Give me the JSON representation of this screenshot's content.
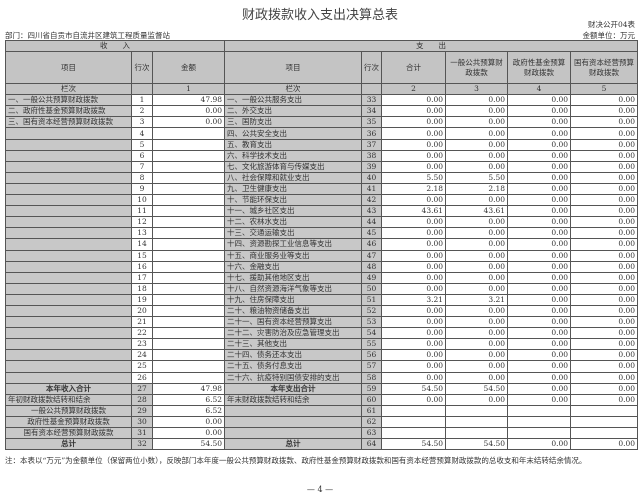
{
  "title": "财政拨款收入支出决算总表",
  "form_no": "财决公开04表",
  "department": "部门：四川省自贡市自流井区建筑工程质量监督站",
  "unit": "金额单位：万元",
  "headers": {
    "income": "收　　入",
    "expense": "支　　出",
    "item": "项目",
    "line_no": "行次",
    "amount": "金额",
    "total": "合计",
    "general_budget": "一般公共预算财政拨款",
    "gov_fund": "政府性基金预算财政拨款",
    "state_capital": "国有资本经营预算财政拨款",
    "column_label": "栏次",
    "col_nums": [
      "1",
      "2",
      "3",
      "4",
      "5"
    ]
  },
  "income_rows": [
    {
      "item": "一、一般公共预算财政拨款",
      "no": "1",
      "amount": "47.98"
    },
    {
      "item": "二、政府性基金预算财政拨款",
      "no": "2",
      "amount": "0.00"
    },
    {
      "item": "三、国有资本经营预算财政拨款",
      "no": "3",
      "amount": "0.00"
    },
    {
      "item": "",
      "no": "4",
      "amount": ""
    },
    {
      "item": "",
      "no": "5",
      "amount": ""
    },
    {
      "item": "",
      "no": "6",
      "amount": ""
    },
    {
      "item": "",
      "no": "7",
      "amount": ""
    },
    {
      "item": "",
      "no": "8",
      "amount": ""
    },
    {
      "item": "",
      "no": "9",
      "amount": ""
    },
    {
      "item": "",
      "no": "10",
      "amount": ""
    },
    {
      "item": "",
      "no": "11",
      "amount": ""
    },
    {
      "item": "",
      "no": "12",
      "amount": ""
    },
    {
      "item": "",
      "no": "13",
      "amount": ""
    },
    {
      "item": "",
      "no": "14",
      "amount": ""
    },
    {
      "item": "",
      "no": "15",
      "amount": ""
    },
    {
      "item": "",
      "no": "16",
      "amount": ""
    },
    {
      "item": "",
      "no": "17",
      "amount": ""
    },
    {
      "item": "",
      "no": "18",
      "amount": ""
    },
    {
      "item": "",
      "no": "19",
      "amount": ""
    },
    {
      "item": "",
      "no": "20",
      "amount": ""
    },
    {
      "item": "",
      "no": "21",
      "amount": ""
    },
    {
      "item": "",
      "no": "22",
      "amount": ""
    },
    {
      "item": "",
      "no": "23",
      "amount": ""
    },
    {
      "item": "",
      "no": "24",
      "amount": ""
    },
    {
      "item": "",
      "no": "25",
      "amount": ""
    },
    {
      "item": "",
      "no": "26",
      "amount": ""
    },
    {
      "item": "本年收入合计",
      "no": "27",
      "amount": "47.98"
    },
    {
      "item": "年初财政拨款结转和结余",
      "no": "28",
      "amount": "6.52"
    },
    {
      "item": "一般公共预算财政拨款",
      "no": "29",
      "amount": "6.52"
    },
    {
      "item": "政府性基金预算财政拨款",
      "no": "30",
      "amount": "0.00"
    },
    {
      "item": "国有资本经营预算财政拨款",
      "no": "31",
      "amount": "0.00"
    },
    {
      "item": "总计",
      "no": "32",
      "amount": "54.50"
    }
  ],
  "expense_rows": [
    {
      "item": "一、一般公共服务支出",
      "no": "33",
      "v": [
        "0.00",
        "0.00",
        "0.00",
        "0.00"
      ]
    },
    {
      "item": "二、外交支出",
      "no": "34",
      "v": [
        "0.00",
        "0.00",
        "0.00",
        "0.00"
      ]
    },
    {
      "item": "三、国防支出",
      "no": "35",
      "v": [
        "0.00",
        "0.00",
        "0.00",
        "0.00"
      ]
    },
    {
      "item": "四、公共安全支出",
      "no": "36",
      "v": [
        "0.00",
        "0.00",
        "0.00",
        "0.00"
      ]
    },
    {
      "item": "五、教育支出",
      "no": "37",
      "v": [
        "0.00",
        "0.00",
        "0.00",
        "0.00"
      ]
    },
    {
      "item": "六、科学技术支出",
      "no": "38",
      "v": [
        "0.00",
        "0.00",
        "0.00",
        "0.00"
      ]
    },
    {
      "item": "七、文化旅游体育与传媒支出",
      "no": "39",
      "v": [
        "0.00",
        "0.00",
        "0.00",
        "0.00"
      ]
    },
    {
      "item": "八、社会保障和就业支出",
      "no": "40",
      "v": [
        "5.50",
        "5.50",
        "0.00",
        "0.00"
      ]
    },
    {
      "item": "九、卫生健康支出",
      "no": "41",
      "v": [
        "2.18",
        "2.18",
        "0.00",
        "0.00"
      ]
    },
    {
      "item": "十、节能环保支出",
      "no": "42",
      "v": [
        "0.00",
        "0.00",
        "0.00",
        "0.00"
      ]
    },
    {
      "item": "十一、城乡社区支出",
      "no": "43",
      "v": [
        "43.61",
        "43.61",
        "0.00",
        "0.00"
      ]
    },
    {
      "item": "十二、农林水支出",
      "no": "44",
      "v": [
        "0.00",
        "0.00",
        "0.00",
        "0.00"
      ]
    },
    {
      "item": "十三、交通运输支出",
      "no": "45",
      "v": [
        "0.00",
        "0.00",
        "0.00",
        "0.00"
      ]
    },
    {
      "item": "十四、资源勘探工业信息等支出",
      "no": "46",
      "v": [
        "0.00",
        "0.00",
        "0.00",
        "0.00"
      ]
    },
    {
      "item": "十五、商业服务业等支出",
      "no": "47",
      "v": [
        "0.00",
        "0.00",
        "0.00",
        "0.00"
      ]
    },
    {
      "item": "十六、金融支出",
      "no": "48",
      "v": [
        "0.00",
        "0.00",
        "0.00",
        "0.00"
      ]
    },
    {
      "item": "十七、援助其他地区支出",
      "no": "49",
      "v": [
        "0.00",
        "0.00",
        "0.00",
        "0.00"
      ]
    },
    {
      "item": "十八、自然资源海洋气象等支出",
      "no": "50",
      "v": [
        "0.00",
        "0.00",
        "0.00",
        "0.00"
      ]
    },
    {
      "item": "十九、住房保障支出",
      "no": "51",
      "v": [
        "3.21",
        "3.21",
        "0.00",
        "0.00"
      ]
    },
    {
      "item": "二十、粮油物资储备支出",
      "no": "52",
      "v": [
        "0.00",
        "0.00",
        "0.00",
        "0.00"
      ]
    },
    {
      "item": "二十一、国有资本经营预算支出",
      "no": "53",
      "v": [
        "0.00",
        "0.00",
        "0.00",
        "0.00"
      ]
    },
    {
      "item": "二十二、灾害防治及应急管理支出",
      "no": "54",
      "v": [
        "0.00",
        "0.00",
        "0.00",
        "0.00"
      ]
    },
    {
      "item": "二十三、其他支出",
      "no": "55",
      "v": [
        "0.00",
        "0.00",
        "0.00",
        "0.00"
      ]
    },
    {
      "item": "二十四、债务还本支出",
      "no": "56",
      "v": [
        "0.00",
        "0.00",
        "0.00",
        "0.00"
      ]
    },
    {
      "item": "二十五、债务付息支出",
      "no": "57",
      "v": [
        "0.00",
        "0.00",
        "0.00",
        "0.00"
      ]
    },
    {
      "item": "二十六、抗疫特别国债安排的支出",
      "no": "58",
      "v": [
        "0.00",
        "0.00",
        "0.00",
        "0.00"
      ]
    },
    {
      "item": "本年支出合计",
      "no": "59",
      "v": [
        "54.50",
        "54.50",
        "0.00",
        "0.00"
      ]
    },
    {
      "item": "年末财政拨款结转和结余",
      "no": "60",
      "v": [
        "0.00",
        "0.00",
        "0.00",
        "0.00"
      ]
    },
    {
      "item": "",
      "no": "61",
      "v": [
        "",
        "",
        "",
        ""
      ]
    },
    {
      "item": "",
      "no": "62",
      "v": [
        "",
        "",
        "",
        ""
      ]
    },
    {
      "item": "",
      "no": "63",
      "v": [
        "",
        "",
        "",
        ""
      ]
    },
    {
      "item": "总计",
      "no": "64",
      "v": [
        "54.50",
        "54.50",
        "0.00",
        "0.00"
      ]
    }
  ],
  "note": "注：本表以“万元”为金额单位（保留两位小数），反映部门本年度一般公共预算财政拨款、政府性基金预算财政拨款和国有资本经营预算财政拨款的总收支和年末结转结余情况。",
  "page_number": "— 4 —"
}
